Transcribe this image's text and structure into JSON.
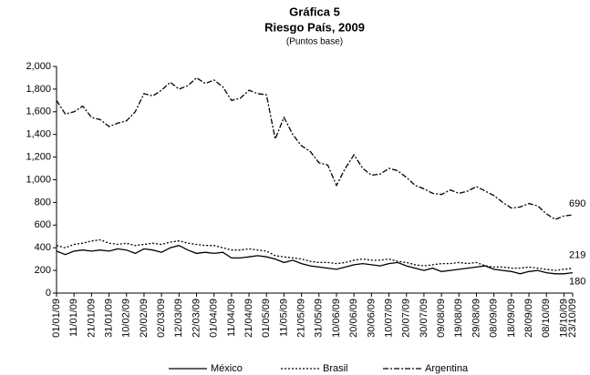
{
  "chart_data": {
    "type": "line",
    "title": "Gráfica 5",
    "subtitle": "Riesgo País, 2009",
    "axis_note": "(Puntos base)",
    "categories": [
      "01/01/09",
      null,
      "11/01/09",
      null,
      "21/01/09",
      null,
      "31/01/09",
      null,
      "10/02/09",
      null,
      "20/02/09",
      null,
      "02/03/09",
      null,
      "12/03/09",
      null,
      "22/03/09",
      null,
      "01/04/09",
      null,
      "11/04/09",
      null,
      "21/04/09",
      null,
      "01/05/09",
      null,
      "11/05/09",
      null,
      "21/05/09",
      null,
      "31/05/09",
      null,
      "10/06/09",
      null,
      "20/06/09",
      null,
      "30/06/09",
      null,
      "10/07/09",
      null,
      "20/07/09",
      null,
      "30/07/09",
      null,
      "09/08/09",
      null,
      "19/08/09",
      null,
      "29/08/09",
      null,
      "08/09/09",
      null,
      "18/09/09",
      null,
      "28/09/09",
      null,
      "08/10/09",
      null,
      "18/10/09",
      "23/10/09"
    ],
    "series": [
      {
        "name": "México",
        "color": "#000000",
        "dash": "solid",
        "values": [
          370,
          340,
          370,
          380,
          370,
          380,
          370,
          390,
          380,
          350,
          390,
          380,
          360,
          400,
          420,
          380,
          350,
          360,
          350,
          360,
          310,
          310,
          320,
          330,
          320,
          300,
          270,
          290,
          260,
          240,
          230,
          220,
          210,
          230,
          250,
          260,
          250,
          240,
          260,
          270,
          240,
          220,
          200,
          220,
          190,
          200,
          210,
          220,
          230,
          240,
          210,
          200,
          190,
          170,
          190,
          200,
          180,
          170,
          170,
          180
        ]
      },
      {
        "name": "Brasil",
        "color": "#000000",
        "dash": "dotted",
        "values": [
          420,
          400,
          430,
          440,
          460,
          470,
          440,
          430,
          440,
          420,
          430,
          440,
          430,
          450,
          460,
          440,
          430,
          420,
          420,
          400,
          380,
          380,
          390,
          380,
          370,
          330,
          320,
          310,
          300,
          280,
          270,
          270,
          260,
          270,
          290,
          300,
          290,
          290,
          300,
          280,
          270,
          250,
          240,
          250,
          260,
          260,
          270,
          260,
          270,
          240,
          230,
          230,
          220,
          220,
          230,
          220,
          210,
          200,
          210,
          219
        ]
      },
      {
        "name": "Argentina",
        "color": "#000000",
        "dash": "dashdot",
        "values": [
          1700,
          1580,
          1600,
          1650,
          1550,
          1530,
          1470,
          1500,
          1520,
          1600,
          1760,
          1740,
          1790,
          1860,
          1800,
          1830,
          1900,
          1850,
          1880,
          1820,
          1700,
          1720,
          1790,
          1760,
          1750,
          1360,
          1550,
          1400,
          1300,
          1250,
          1150,
          1130,
          950,
          1100,
          1220,
          1100,
          1040,
          1050,
          1100,
          1080,
          1020,
          950,
          920,
          880,
          870,
          910,
          880,
          900,
          940,
          900,
          860,
          800,
          750,
          760,
          790,
          770,
          700,
          650,
          680,
          690
        ]
      }
    ],
    "ylim": [
      0,
      2000
    ],
    "yticks": [
      0,
      200,
      400,
      600,
      800,
      {
        "value": 1000,
        "label": "1,000"
      },
      {
        "value": 1200,
        "label": "1,200"
      },
      {
        "value": 1400,
        "label": "1,400"
      },
      {
        "value": 1600,
        "label": "1,600"
      },
      {
        "value": 1800,
        "label": "1,800"
      },
      {
        "value": 2000,
        "label": "2,000"
      }
    ],
    "grid": false,
    "legend": "bottom"
  }
}
